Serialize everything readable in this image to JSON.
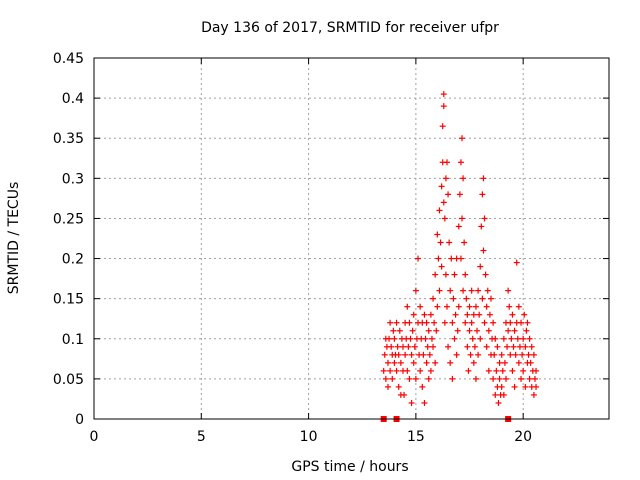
{
  "chart_data": {
    "type": "scatter",
    "title": "Day 136 of 2017, SRMTID for receiver ufpr",
    "xlabel": "GPS time / hours",
    "ylabel": "SRMTID / TECUs",
    "xlim": [
      0,
      24
    ],
    "ylim": [
      0,
      0.45
    ],
    "x_ticks": [
      0,
      5,
      10,
      15,
      20
    ],
    "y_ticks": [
      0,
      0.05,
      0.1,
      0.15,
      0.2,
      0.25,
      0.3,
      0.35,
      0.4,
      0.45
    ],
    "x_tick_labels": [
      "0",
      "5",
      "10",
      "15",
      "20"
    ],
    "y_tick_labels": [
      "0",
      "0.05",
      "0.1",
      "0.15",
      "0.2",
      "0.25",
      "0.3",
      "0.35",
      "0.4",
      "0.45"
    ],
    "grid": true,
    "marker": "plus",
    "color": "#ff0000",
    "cycle_slip_markers_x": [
      13.5,
      14.1,
      19.3
    ],
    "series": [
      {
        "points": [
          [
            13.5,
            0.06
          ],
          [
            13.55,
            0.08
          ],
          [
            13.6,
            0.1
          ],
          [
            13.6,
            0.05
          ],
          [
            13.65,
            0.09
          ],
          [
            13.7,
            0.07
          ],
          [
            13.7,
            0.04
          ],
          [
            13.75,
            0.1
          ],
          [
            13.8,
            0.12
          ],
          [
            13.8,
            0.06
          ],
          [
            13.85,
            0.09
          ],
          [
            13.9,
            0.08
          ],
          [
            13.9,
            0.05
          ],
          [
            13.95,
            0.11
          ],
          [
            14.0,
            0.07
          ],
          [
            14.0,
            0.1
          ],
          [
            14.05,
            0.08
          ],
          [
            14.1,
            0.06
          ],
          [
            14.1,
            0.12
          ],
          [
            14.15,
            0.09
          ],
          [
            14.2,
            0.08
          ],
          [
            14.2,
            0.04
          ],
          [
            14.25,
            0.11
          ],
          [
            14.3,
            0.07
          ],
          [
            14.3,
            0.03
          ],
          [
            14.35,
            0.1
          ],
          [
            14.4,
            0.06
          ],
          [
            14.4,
            0.09
          ],
          [
            14.45,
            0.03
          ],
          [
            14.5,
            0.08
          ],
          [
            14.5,
            0.12
          ],
          [
            14.55,
            0.1
          ],
          [
            14.6,
            0.06
          ],
          [
            14.6,
            0.14
          ],
          [
            14.65,
            0.09
          ],
          [
            14.7,
            0.05
          ],
          [
            14.7,
            0.12
          ],
          [
            14.75,
            0.1
          ],
          [
            14.8,
            0.08
          ],
          [
            14.8,
            0.02
          ],
          [
            14.85,
            0.11
          ],
          [
            14.9,
            0.07
          ],
          [
            14.9,
            0.13
          ],
          [
            14.95,
            0.09
          ],
          [
            15.0,
            0.16
          ],
          [
            15.0,
            0.05
          ],
          [
            15.05,
            0.1
          ],
          [
            15.1,
            0.2
          ],
          [
            15.1,
            0.12
          ],
          [
            15.15,
            0.08
          ],
          [
            15.2,
            0.06
          ],
          [
            15.2,
            0.14
          ],
          [
            15.25,
            0.1
          ],
          [
            15.3,
            0.04
          ],
          [
            15.3,
            0.12
          ],
          [
            15.35,
            0.08
          ],
          [
            15.4,
            0.13
          ],
          [
            15.4,
            0.02
          ],
          [
            15.45,
            0.1
          ],
          [
            15.5,
            0.07
          ],
          [
            15.5,
            0.12
          ],
          [
            15.55,
            0.09
          ],
          [
            15.6,
            0.05
          ],
          [
            15.6,
            0.11
          ],
          [
            15.65,
            0.08
          ],
          [
            15.7,
            0.13
          ],
          [
            15.7,
            0.06
          ],
          [
            15.75,
            0.1
          ],
          [
            15.8,
            0.09
          ],
          [
            15.8,
            0.15
          ],
          [
            15.85,
            0.12
          ],
          [
            15.9,
            0.07
          ],
          [
            15.9,
            0.18
          ],
          [
            15.95,
            0.11
          ],
          [
            16.0,
            0.23
          ],
          [
            16.0,
            0.14
          ],
          [
            16.05,
            0.2
          ],
          [
            16.1,
            0.26
          ],
          [
            16.1,
            0.16
          ],
          [
            16.15,
            0.22
          ],
          [
            16.2,
            0.29
          ],
          [
            16.2,
            0.19
          ],
          [
            16.25,
            0.32
          ],
          [
            16.25,
            0.365
          ],
          [
            16.3,
            0.27
          ],
          [
            16.3,
            0.39
          ],
          [
            16.3,
            0.405
          ],
          [
            16.35,
            0.25
          ],
          [
            16.35,
            0.12
          ],
          [
            16.4,
            0.3
          ],
          [
            16.4,
            0.18
          ],
          [
            16.45,
            0.32
          ],
          [
            16.45,
            0.14
          ],
          [
            16.5,
            0.28
          ],
          [
            16.5,
            0.09
          ],
          [
            16.55,
            0.22
          ],
          [
            16.6,
            0.16
          ],
          [
            16.6,
            0.07
          ],
          [
            16.65,
            0.2
          ],
          [
            16.7,
            0.12
          ],
          [
            16.7,
            0.05
          ],
          [
            16.75,
            0.15
          ],
          [
            16.8,
            0.1
          ],
          [
            16.8,
            0.18
          ],
          [
            16.85,
            0.13
          ],
          [
            16.9,
            0.08
          ],
          [
            16.9,
            0.2
          ],
          [
            16.95,
            0.11
          ],
          [
            17.0,
            0.24
          ],
          [
            17.0,
            0.14
          ],
          [
            17.05,
            0.28
          ],
          [
            17.1,
            0.32
          ],
          [
            17.1,
            0.2
          ],
          [
            17.15,
            0.35
          ],
          [
            17.15,
            0.25
          ],
          [
            17.2,
            0.3
          ],
          [
            17.2,
            0.16
          ],
          [
            17.25,
            0.22
          ],
          [
            17.3,
            0.18
          ],
          [
            17.3,
            0.12
          ],
          [
            17.35,
            0.15
          ],
          [
            17.4,
            0.09
          ],
          [
            17.4,
            0.13
          ],
          [
            17.45,
            0.06
          ],
          [
            17.5,
            0.11
          ],
          [
            17.5,
            0.14
          ],
          [
            17.55,
            0.08
          ],
          [
            17.6,
            0.12
          ],
          [
            17.6,
            0.16
          ],
          [
            17.65,
            0.1
          ],
          [
            17.7,
            0.07
          ],
          [
            17.7,
            0.13
          ],
          [
            17.75,
            0.09
          ],
          [
            17.8,
            0.14
          ],
          [
            17.8,
            0.05
          ],
          [
            17.85,
            0.11
          ],
          [
            17.9,
            0.16
          ],
          [
            17.9,
            0.08
          ],
          [
            17.95,
            0.13
          ],
          [
            18.0,
            0.19
          ],
          [
            18.0,
            0.1
          ],
          [
            18.05,
            0.24
          ],
          [
            18.1,
            0.28
          ],
          [
            18.1,
            0.15
          ],
          [
            18.15,
            0.3
          ],
          [
            18.15,
            0.21
          ],
          [
            18.2,
            0.25
          ],
          [
            18.2,
            0.12
          ],
          [
            18.25,
            0.18
          ],
          [
            18.3,
            0.14
          ],
          [
            18.3,
            0.09
          ],
          [
            18.35,
            0.16
          ],
          [
            18.4,
            0.11
          ],
          [
            18.4,
            0.06
          ],
          [
            18.45,
            0.13
          ],
          [
            18.5,
            0.08
          ],
          [
            18.5,
            0.15
          ],
          [
            18.55,
            0.1
          ],
          [
            18.6,
            0.05
          ],
          [
            18.6,
            0.12
          ],
          [
            18.65,
            0.08
          ],
          [
            18.7,
            0.03
          ],
          [
            18.7,
            0.1
          ],
          [
            18.75,
            0.06
          ],
          [
            18.8,
            0.04
          ],
          [
            18.8,
            0.09
          ],
          [
            18.85,
            0.02
          ],
          [
            18.9,
            0.07
          ],
          [
            18.9,
            0.05
          ],
          [
            18.95,
            0.03
          ],
          [
            19.0,
            0.08
          ],
          [
            19.0,
            0.04
          ],
          [
            19.05,
            0.06
          ],
          [
            19.1,
            0.1
          ],
          [
            19.1,
            0.03
          ],
          [
            19.15,
            0.07
          ],
          [
            19.2,
            0.12
          ],
          [
            19.2,
            0.05
          ],
          [
            19.25,
            0.09
          ],
          [
            19.3,
            0.16
          ],
          [
            19.3,
            0.11
          ],
          [
            19.35,
            0.14
          ],
          [
            19.4,
            0.08
          ],
          [
            19.4,
            0.12
          ],
          [
            19.45,
            0.1
          ],
          [
            19.5,
            0.06
          ],
          [
            19.5,
            0.13
          ],
          [
            19.55,
            0.09
          ],
          [
            19.6,
            0.04
          ],
          [
            19.6,
            0.11
          ],
          [
            19.65,
            0.08
          ],
          [
            19.7,
            0.195
          ],
          [
            19.7,
            0.12
          ],
          [
            19.75,
            0.1
          ],
          [
            19.8,
            0.07
          ],
          [
            19.8,
            0.14
          ],
          [
            19.85,
            0.09
          ],
          [
            19.9,
            0.05
          ],
          [
            19.9,
            0.12
          ],
          [
            19.95,
            0.08
          ],
          [
            20.0,
            0.1
          ],
          [
            20.0,
            0.06
          ],
          [
            20.05,
            0.13
          ],
          [
            20.1,
            0.09
          ],
          [
            20.1,
            0.04
          ],
          [
            20.15,
            0.11
          ],
          [
            20.2,
            0.07
          ],
          [
            20.2,
            0.12
          ],
          [
            20.25,
            0.08
          ],
          [
            20.3,
            0.05
          ],
          [
            20.3,
            0.1
          ],
          [
            20.35,
            0.07
          ],
          [
            20.4,
            0.09
          ],
          [
            20.4,
            0.04
          ],
          [
            20.45,
            0.06
          ],
          [
            20.5,
            0.08
          ],
          [
            20.5,
            0.03
          ],
          [
            20.55,
            0.05
          ],
          [
            20.6,
            0.04
          ],
          [
            20.6,
            0.06
          ]
        ]
      }
    ]
  }
}
